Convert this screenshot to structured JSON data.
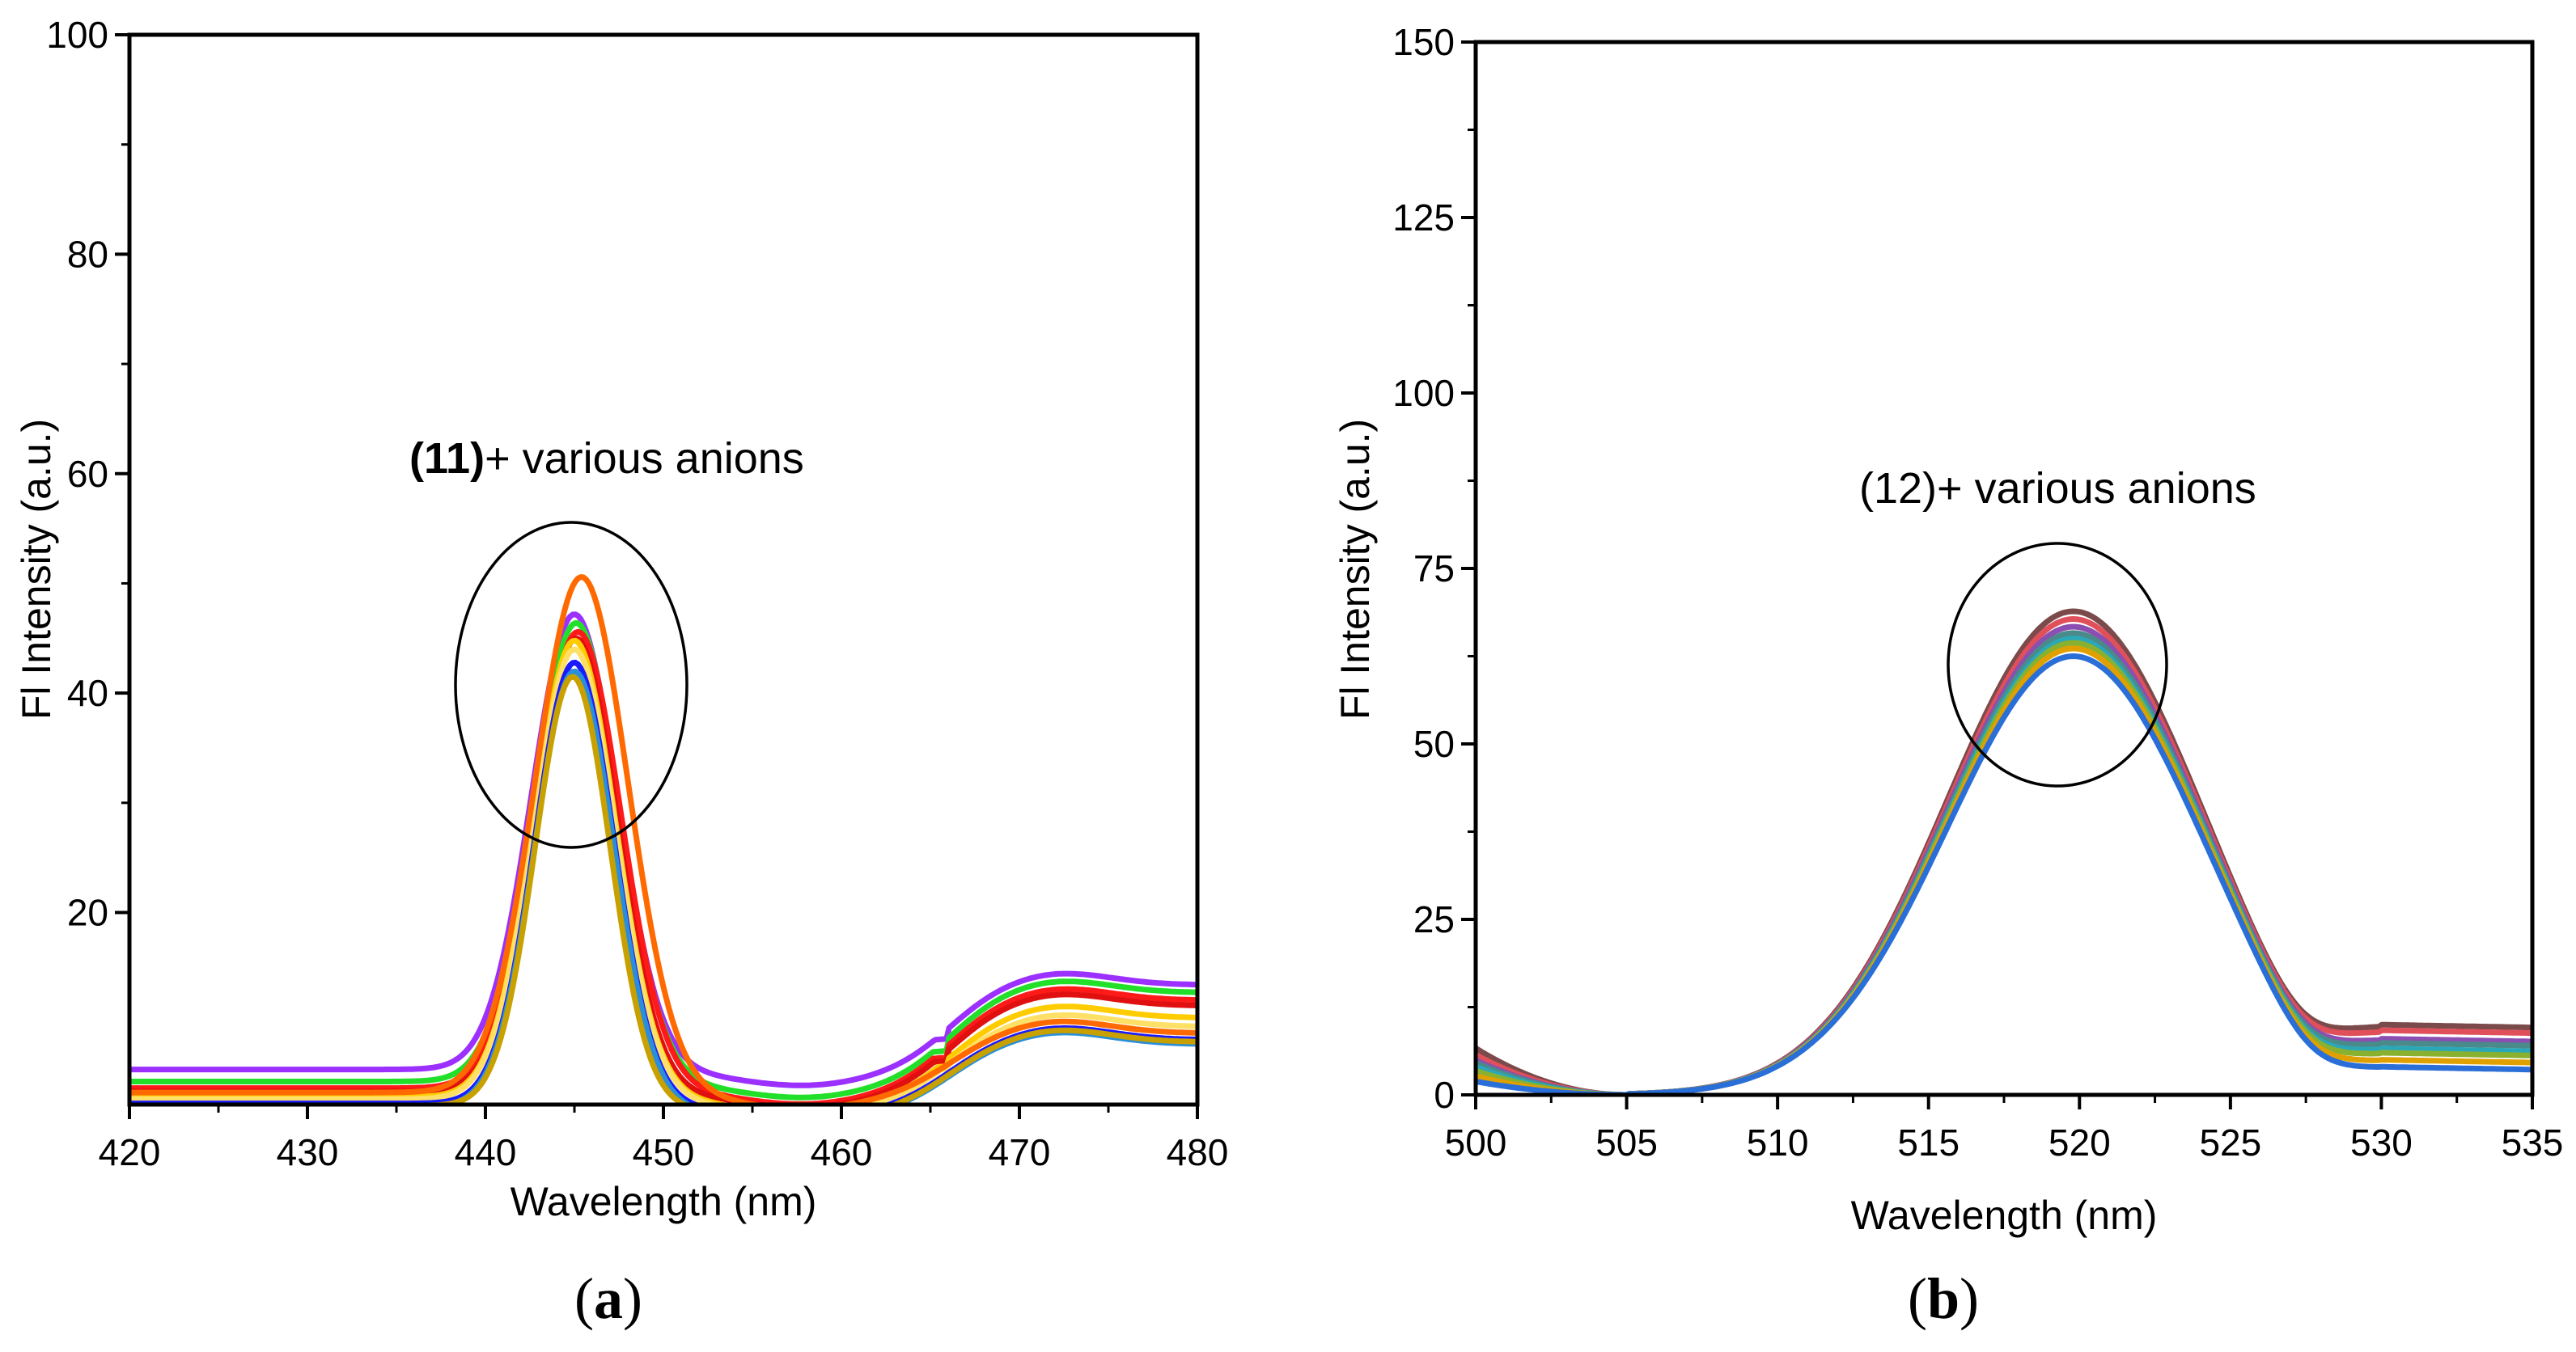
{
  "chart_data": [
    {
      "type": "line",
      "panel": "(a)",
      "panel_letter": "a",
      "xlabel": "Wavelength (nm)",
      "ylabel": "Fl Intensity (a.u.)",
      "xlim": [
        420,
        480
      ],
      "ylim": [
        2.5,
        100
      ],
      "xticks": [
        420,
        430,
        440,
        450,
        460,
        470,
        480
      ],
      "yticks": [
        20,
        40,
        60,
        80,
        100
      ],
      "annotation": {
        "compound": "(11)",
        "text": "+ various anions",
        "bold_part": "(11)"
      },
      "circle": {
        "cx": 445.5,
        "cy": 41,
        "rx": 7.2,
        "ry": 15
      },
      "series": [
        {
          "name": "s1",
          "color": "#9b30ff",
          "baseline": 5.7,
          "peak": 47.2,
          "center": 445.0,
          "width": 2.4,
          "tail": 13.4
        },
        {
          "name": "s2",
          "color": "#22e02a",
          "baseline": 4.6,
          "peak": 46.4,
          "center": 445.1,
          "width": 2.4,
          "tail": 12.7
        },
        {
          "name": "s3",
          "color": "#ff1a1a",
          "baseline": 4.0,
          "peak": 45.6,
          "center": 445.2,
          "width": 2.4,
          "tail": 12.0
        },
        {
          "name": "s4",
          "color": "#e01010",
          "baseline": 3.7,
          "peak": 45.0,
          "center": 445.1,
          "width": 2.3,
          "tail": 11.5
        },
        {
          "name": "s5",
          "color": "#ffcc00",
          "baseline": 3.2,
          "peak": 44.8,
          "center": 445.0,
          "width": 2.3,
          "tail": 10.4
        },
        {
          "name": "s6",
          "color": "#ffe066",
          "baseline": 3.0,
          "peak": 44.0,
          "center": 445.0,
          "width": 2.3,
          "tail": 9.6
        },
        {
          "name": "s7",
          "color": "#ff6a00",
          "baseline": 3.6,
          "peak": 50.6,
          "center": 445.4,
          "width": 2.6,
          "tail": 9.0
        },
        {
          "name": "s8",
          "color": "#1a1aff",
          "baseline": 2.6,
          "peak": 42.8,
          "center": 445.0,
          "width": 2.2,
          "tail": 8.4
        },
        {
          "name": "s9",
          "color": "#2a8fd8",
          "baseline": 2.3,
          "peak": 42.0,
          "center": 445.0,
          "width": 2.2,
          "tail": 8.0
        },
        {
          "name": "s10",
          "color": "#c8a000",
          "baseline": 2.4,
          "peak": 41.5,
          "center": 444.9,
          "width": 2.1,
          "tail": 8.2
        }
      ]
    },
    {
      "type": "line",
      "panel": "(b)",
      "panel_letter": "b",
      "xlabel": "Wavelength (nm)",
      "ylabel": "Fl Intensity (a.u.)",
      "xlim": [
        500,
        535
      ],
      "ylim": [
        0,
        150
      ],
      "xticks": [
        500,
        505,
        510,
        515,
        520,
        525,
        530,
        535
      ],
      "yticks": [
        0,
        25,
        50,
        75,
        100,
        125,
        150
      ],
      "annotation": {
        "compound": "(12)",
        "text": "+ various anions",
        "bold_part": ""
      },
      "circle": {
        "cx": 519.2,
        "cy": 61,
        "rx": 3.0,
        "ry": 17
      },
      "series": [
        {
          "name": "s1",
          "color": "#7b4a4a",
          "peak": 68.9,
          "center": 519.8,
          "tail": 10.0,
          "edge": 7.0
        },
        {
          "name": "s2",
          "color": "#e0505a",
          "peak": 67.8,
          "center": 519.8,
          "tail": 9.2,
          "edge": 6.0
        },
        {
          "name": "s3",
          "color": "#8a4fb0",
          "peak": 66.7,
          "center": 519.8,
          "tail": 8.0,
          "edge": 5.2
        },
        {
          "name": "s4",
          "color": "#4a8a8a",
          "peak": 65.8,
          "center": 519.8,
          "tail": 7.4,
          "edge": 4.8
        },
        {
          "name": "s5",
          "color": "#2aa8b8",
          "peak": 65.0,
          "center": 519.8,
          "tail": 6.6,
          "edge": 4.2
        },
        {
          "name": "s6",
          "color": "#8ab030",
          "peak": 64.4,
          "center": 519.8,
          "tail": 6.0,
          "edge": 3.6
        },
        {
          "name": "s7",
          "color": "#e0a000",
          "peak": 63.6,
          "center": 519.8,
          "tail": 5.0,
          "edge": 2.8
        },
        {
          "name": "s8",
          "color": "#2a6fd8",
          "peak": 62.5,
          "center": 519.8,
          "tail": 4.0,
          "edge": 2.0
        }
      ]
    }
  ]
}
